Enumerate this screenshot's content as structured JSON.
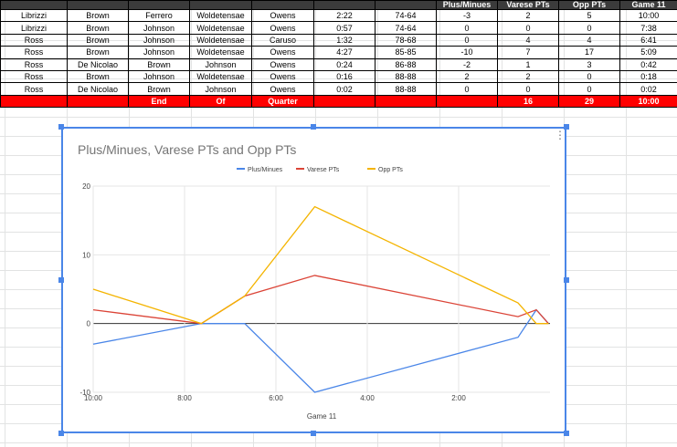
{
  "sheet": {
    "headers": [
      "",
      "",
      "",
      "",
      "",
      "",
      "",
      "Plus/Minues",
      "Varese PTs",
      "Opp PTs",
      "Game 11"
    ],
    "rows": [
      [
        "Librizzi",
        "Brown",
        "Ferrero",
        "Woldetensae",
        "Owens",
        "2:22",
        "74-64",
        "-3",
        "2",
        "5",
        "10:00"
      ],
      [
        "Librizzi",
        "Brown",
        "Johnson",
        "Woldetensae",
        "Owens",
        "0:57",
        "74-64",
        "0",
        "0",
        "0",
        "7:38"
      ],
      [
        "Ross",
        "Brown",
        "Johnson",
        "Woldetensae",
        "Caruso",
        "1:32",
        "78-68",
        "0",
        "4",
        "4",
        "6:41"
      ],
      [
        "Ross",
        "Brown",
        "Johnson",
        "Woldetensae",
        "Owens",
        "4:27",
        "85-85",
        "-10",
        "7",
        "17",
        "5:09"
      ],
      [
        "Ross",
        "De Nicolao",
        "Brown",
        "Johnson",
        "Owens",
        "0:24",
        "86-88",
        "-2",
        "1",
        "3",
        "0:42"
      ],
      [
        "Ross",
        "Brown",
        "Johnson",
        "Woldetensae",
        "Owens",
        "0:16",
        "88-88",
        "2",
        "2",
        "0",
        "0:18"
      ],
      [
        "Ross",
        "De Nicolao",
        "Brown",
        "Johnson",
        "Owens",
        "0:02",
        "88-88",
        "0",
        "0",
        "0",
        "0:02"
      ]
    ],
    "total_row": [
      "",
      "",
      "End",
      "Of",
      "Quarter",
      "",
      "",
      "",
      "16",
      "29",
      "10:00"
    ],
    "total_color": "#ff0000",
    "header_color": "#3b3b3b"
  },
  "chart_data": {
    "type": "line",
    "title": "Plus/Minues, Varese PTs and Opp PTs",
    "xlabel": "Game 11",
    "x_ticks": [
      "10:00",
      "8:00",
      "6:00",
      "4:00",
      "2:00"
    ],
    "x_values_mmss": [
      "10:00",
      "7:38",
      "6:41",
      "5:09",
      "0:42",
      "0:18",
      "0:02"
    ],
    "x_values_seconds": [
      600,
      458,
      401,
      309,
      42,
      18,
      2
    ],
    "x_range_seconds": [
      600,
      0
    ],
    "ylim": [
      -10,
      20
    ],
    "y_ticks": [
      "20",
      "10",
      "0",
      "-10"
    ],
    "series": [
      {
        "name": "Plus/Minues",
        "color": "#4a86e8",
        "values": [
          -3,
          0,
          0,
          -10,
          -2,
          2,
          0
        ]
      },
      {
        "name": "Varese PTs",
        "color": "#db4437",
        "values": [
          2,
          0,
          4,
          7,
          1,
          2,
          0
        ]
      },
      {
        "name": "Opp PTs",
        "color": "#f4b400",
        "values": [
          5,
          0,
          4,
          17,
          3,
          0,
          0
        ]
      }
    ],
    "legend_position": "top",
    "grid": true
  },
  "chart_ui": {
    "border_color": "#4a86e8",
    "menu_icon": "more-vert-icon"
  }
}
